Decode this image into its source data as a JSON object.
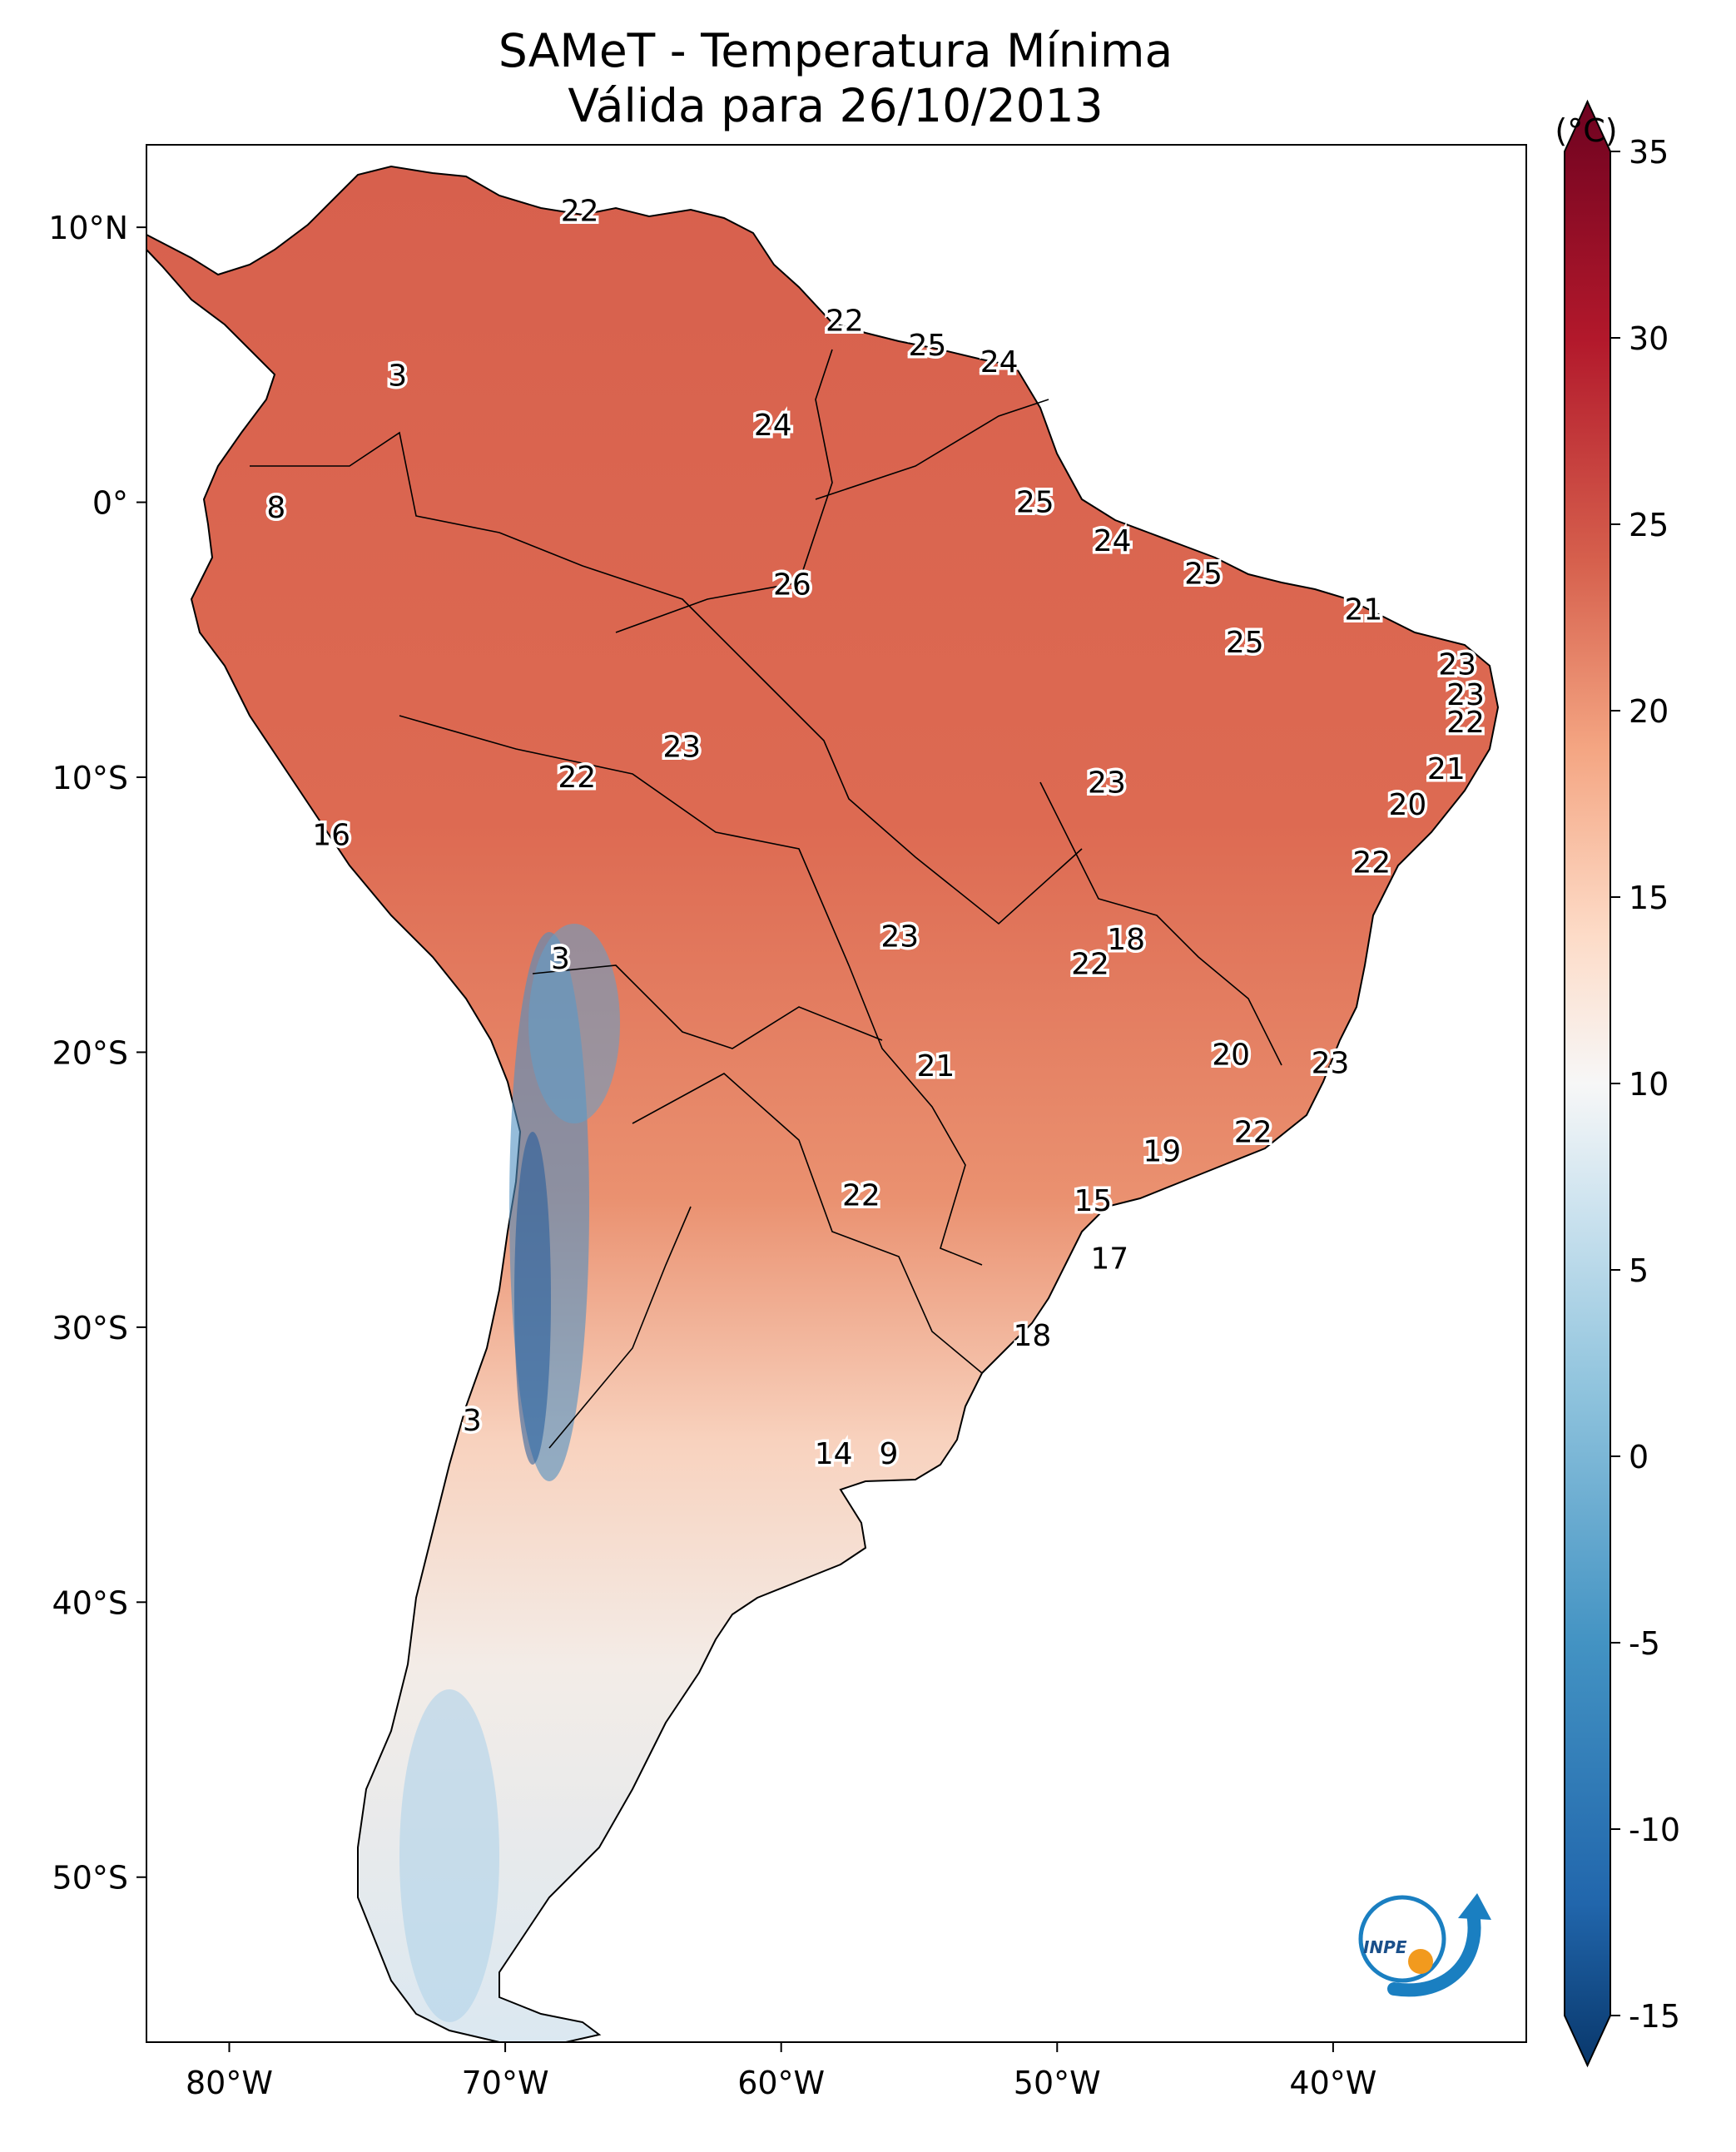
{
  "title": {
    "line1": "SAMeT - Temperatura Mínima",
    "line2": "Válida para 26/10/2013"
  },
  "map": {
    "lon_range": [
      -83,
      -33
    ],
    "lat_range": [
      -56,
      13
    ],
    "lon_ticks": [
      {
        "value": -80,
        "label": "80°W"
      },
      {
        "value": -70,
        "label": "70°W"
      },
      {
        "value": -60,
        "label": "60°W"
      },
      {
        "value": -50,
        "label": "50°W"
      },
      {
        "value": -40,
        "label": "40°W"
      }
    ],
    "lat_ticks": [
      {
        "value": 10,
        "label": "10°N"
      },
      {
        "value": 0,
        "label": "0°"
      },
      {
        "value": -10,
        "label": "10°S"
      },
      {
        "value": -20,
        "label": "20°S"
      },
      {
        "value": -30,
        "label": "30°S"
      },
      {
        "value": -40,
        "label": "40°S"
      },
      {
        "value": -50,
        "label": "50°S"
      }
    ],
    "temperature_labels": [
      {
        "value": "22",
        "lon": -67.3,
        "lat": 10.6
      },
      {
        "value": "3",
        "lon": -73.9,
        "lat": 4.6
      },
      {
        "value": "22",
        "lon": -57.7,
        "lat": 6.6
      },
      {
        "value": "25",
        "lon": -54.7,
        "lat": 5.7
      },
      {
        "value": "24",
        "lon": -52.1,
        "lat": 5.1
      },
      {
        "value": "24",
        "lon": -60.3,
        "lat": 2.8
      },
      {
        "value": "8",
        "lon": -78.3,
        "lat": -0.2
      },
      {
        "value": "25",
        "lon": -50.8,
        "lat": 0.0
      },
      {
        "value": "24",
        "lon": -48.0,
        "lat": -1.4
      },
      {
        "value": "26",
        "lon": -59.6,
        "lat": -3.0
      },
      {
        "value": "25",
        "lon": -44.7,
        "lat": -2.6
      },
      {
        "value": "21",
        "lon": -38.9,
        "lat": -3.9
      },
      {
        "value": "25",
        "lon": -43.2,
        "lat": -5.1
      },
      {
        "value": "23",
        "lon": -35.5,
        "lat": -5.9
      },
      {
        "value": "23",
        "lon": -35.2,
        "lat": -7.0
      },
      {
        "value": "22",
        "lon": -35.2,
        "lat": -8.0
      },
      {
        "value": "23",
        "lon": -63.6,
        "lat": -8.9
      },
      {
        "value": "22",
        "lon": -67.4,
        "lat": -10.0
      },
      {
        "value": "23",
        "lon": -48.2,
        "lat": -10.2
      },
      {
        "value": "21",
        "lon": -35.9,
        "lat": -9.7
      },
      {
        "value": "20",
        "lon": -37.3,
        "lat": -11.0
      },
      {
        "value": "16",
        "lon": -76.3,
        "lat": -12.1
      },
      {
        "value": "22",
        "lon": -38.6,
        "lat": -13.1
      },
      {
        "value": "23",
        "lon": -55.7,
        "lat": -15.8
      },
      {
        "value": "18",
        "lon": -47.5,
        "lat": -15.9
      },
      {
        "value": "3",
        "lon": -68.0,
        "lat": -16.6
      },
      {
        "value": "22",
        "lon": -48.8,
        "lat": -16.8
      },
      {
        "value": "20",
        "lon": -43.7,
        "lat": -20.1
      },
      {
        "value": "21",
        "lon": -54.4,
        "lat": -20.5
      },
      {
        "value": "23",
        "lon": -40.1,
        "lat": -20.4
      },
      {
        "value": "22",
        "lon": -42.9,
        "lat": -22.9
      },
      {
        "value": "19",
        "lon": -46.2,
        "lat": -23.6
      },
      {
        "value": "22",
        "lon": -57.1,
        "lat": -25.2
      },
      {
        "value": "15",
        "lon": -48.7,
        "lat": -25.4
      },
      {
        "value": "17",
        "lon": -48.1,
        "lat": -27.5
      },
      {
        "value": "18",
        "lon": -50.9,
        "lat": -30.3
      },
      {
        "value": "3",
        "lon": -71.2,
        "lat": -33.4
      },
      {
        "value": "14",
        "lon": -58.1,
        "lat": -34.6
      },
      {
        "value": "9",
        "lon": -56.1,
        "lat": -34.6
      }
    ]
  },
  "colorbar": {
    "unit": "(°C)",
    "min": -15,
    "max": 35,
    "ticks": [
      {
        "value": 35,
        "label": "35"
      },
      {
        "value": 30,
        "label": "30"
      },
      {
        "value": 25,
        "label": "25"
      },
      {
        "value": 20,
        "label": "20"
      },
      {
        "value": 15,
        "label": "15"
      },
      {
        "value": 10,
        "label": "10"
      },
      {
        "value": 5,
        "label": "5"
      },
      {
        "value": 0,
        "label": "0"
      },
      {
        "value": -5,
        "label": "-5"
      },
      {
        "value": -10,
        "label": "-10"
      },
      {
        "value": -15,
        "label": "-15"
      }
    ],
    "stops": [
      {
        "value": -17,
        "color": "#053061"
      },
      {
        "value": -12,
        "color": "#2166ac"
      },
      {
        "value": -5,
        "color": "#4393c3"
      },
      {
        "value": 2,
        "color": "#92c5de"
      },
      {
        "value": 7,
        "color": "#d1e5f0"
      },
      {
        "value": 10,
        "color": "#f7f7f7"
      },
      {
        "value": 14,
        "color": "#fddbc7"
      },
      {
        "value": 19,
        "color": "#f4a582"
      },
      {
        "value": 24,
        "color": "#d6604d"
      },
      {
        "value": 30,
        "color": "#b2182b"
      },
      {
        "value": 37,
        "color": "#67001f"
      }
    ]
  },
  "logo": {
    "text": "INPE"
  }
}
